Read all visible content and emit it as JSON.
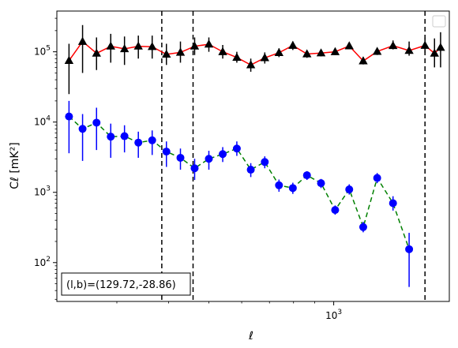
{
  "chart_data": {
    "type": "line",
    "title": "",
    "xlabel": "ℓ",
    "ylabel": "Cℓ  [mK²]",
    "x_scale": "log",
    "y_scale": "log",
    "xlim": [
      215,
      1900
    ],
    "ylim": [
      28,
      380000
    ],
    "x_ticks": [
      {
        "value": 1000,
        "base": "10",
        "exp": "3"
      }
    ],
    "y_ticks": [
      {
        "value": 100,
        "base": "10",
        "exp": "2"
      },
      {
        "value": 1000,
        "base": "10",
        "exp": "3"
      },
      {
        "value": 10000,
        "base": "10",
        "exp": "4"
      },
      {
        "value": 100000,
        "base": "10",
        "exp": "5"
      }
    ],
    "grid": false,
    "annotation": "(l,b)=(129.72,-28.86)",
    "vlines": [
      {
        "x": 385,
        "color": "#000000",
        "dash": "dashed"
      },
      {
        "x": 458,
        "color": "#000000",
        "dash": "dashed"
      },
      {
        "x": 1660,
        "color": "#000000",
        "dash": "dashed"
      }
    ],
    "series": [
      {
        "marker": "triangle",
        "line_color": "#ff0000",
        "marker_color": "#000000",
        "line_style": "solid",
        "points": [
          {
            "x": 230,
            "y": 75000,
            "lo": 25000,
            "hi": 130000
          },
          {
            "x": 248,
            "y": 140000,
            "lo": 50000,
            "hi": 240000
          },
          {
            "x": 268,
            "y": 95000,
            "lo": 55000,
            "hi": 160000
          },
          {
            "x": 290,
            "y": 120000,
            "lo": 70000,
            "hi": 180000
          },
          {
            "x": 313,
            "y": 110000,
            "lo": 65000,
            "hi": 165000
          },
          {
            "x": 338,
            "y": 120000,
            "lo": 80000,
            "hi": 170000
          },
          {
            "x": 365,
            "y": 118000,
            "lo": 80000,
            "hi": 170000
          },
          {
            "x": 395,
            "y": 92000,
            "lo": 65000,
            "hi": 130000
          },
          {
            "x": 427,
            "y": 98000,
            "lo": 70000,
            "hi": 140000
          },
          {
            "x": 462,
            "y": 120000,
            "lo": 90000,
            "hi": 160000
          },
          {
            "x": 500,
            "y": 128000,
            "lo": 100000,
            "hi": 160000
          },
          {
            "x": 540,
            "y": 100000,
            "lo": 80000,
            "hi": 125000
          },
          {
            "x": 584,
            "y": 83000,
            "lo": 70000,
            "hi": 100000
          },
          {
            "x": 631,
            "y": 65000,
            "lo": 52000,
            "hi": 80000
          },
          {
            "x": 682,
            "y": 82000,
            "lo": 68000,
            "hi": 98000
          },
          {
            "x": 738,
            "y": 97000,
            "lo": 84000,
            "hi": 112000
          },
          {
            "x": 797,
            "y": 123000,
            "lo": 106000,
            "hi": 140000
          },
          {
            "x": 862,
            "y": 93000,
            "lo": 82000,
            "hi": 105000
          },
          {
            "x": 932,
            "y": 96000,
            "lo": 86000,
            "hi": 107000
          },
          {
            "x": 1008,
            "y": 100000,
            "lo": 90000,
            "hi": 112000
          },
          {
            "x": 1090,
            "y": 121000,
            "lo": 110000,
            "hi": 134000
          },
          {
            "x": 1178,
            "y": 74000,
            "lo": 66000,
            "hi": 84000
          },
          {
            "x": 1273,
            "y": 101000,
            "lo": 90000,
            "hi": 113000
          },
          {
            "x": 1390,
            "y": 122000,
            "lo": 108000,
            "hi": 145000
          },
          {
            "x": 1520,
            "y": 104000,
            "lo": 88000,
            "hi": 140000
          },
          {
            "x": 1660,
            "y": 123000,
            "lo": 95000,
            "hi": 160000
          },
          {
            "x": 1750,
            "y": 95000,
            "lo": 60000,
            "hi": 155000
          },
          {
            "x": 1810,
            "y": 115000,
            "lo": 60000,
            "hi": 190000
          }
        ]
      },
      {
        "marker": "circle",
        "line_color": "#008000",
        "marker_color": "#0000ff",
        "line_style": "dashed",
        "points": [
          {
            "x": 230,
            "y": 12000,
            "lo": 3600,
            "hi": 20000
          },
          {
            "x": 248,
            "y": 8000,
            "lo": 2800,
            "hi": 13000
          },
          {
            "x": 268,
            "y": 9800,
            "lo": 4000,
            "hi": 16000
          },
          {
            "x": 290,
            "y": 6200,
            "lo": 3100,
            "hi": 9500
          },
          {
            "x": 313,
            "y": 6300,
            "lo": 3700,
            "hi": 9000
          },
          {
            "x": 338,
            "y": 5100,
            "lo": 3100,
            "hi": 7300
          },
          {
            "x": 365,
            "y": 5500,
            "lo": 3400,
            "hi": 7600
          },
          {
            "x": 395,
            "y": 3800,
            "lo": 2300,
            "hi": 5300
          },
          {
            "x": 427,
            "y": 3100,
            "lo": 2100,
            "hi": 4200
          },
          {
            "x": 462,
            "y": 2200,
            "lo": 1500,
            "hi": 3000
          },
          {
            "x": 500,
            "y": 3000,
            "lo": 2100,
            "hi": 3900
          },
          {
            "x": 540,
            "y": 3500,
            "lo": 2700,
            "hi": 4400
          },
          {
            "x": 584,
            "y": 4200,
            "lo": 3300,
            "hi": 5300
          },
          {
            "x": 631,
            "y": 2100,
            "lo": 1650,
            "hi": 2600
          },
          {
            "x": 682,
            "y": 2700,
            "lo": 2200,
            "hi": 3250
          },
          {
            "x": 738,
            "y": 1260,
            "lo": 1020,
            "hi": 1520
          },
          {
            "x": 797,
            "y": 1150,
            "lo": 950,
            "hi": 1370
          },
          {
            "x": 862,
            "y": 1750,
            "lo": 1500,
            "hi": 2000
          },
          {
            "x": 932,
            "y": 1350,
            "lo": 1150,
            "hi": 1550
          },
          {
            "x": 1008,
            "y": 560,
            "lo": 480,
            "hi": 650
          },
          {
            "x": 1090,
            "y": 1100,
            "lo": 930,
            "hi": 1300
          },
          {
            "x": 1178,
            "y": 320,
            "lo": 270,
            "hi": 380
          },
          {
            "x": 1273,
            "y": 1600,
            "lo": 1350,
            "hi": 1880
          },
          {
            "x": 1390,
            "y": 700,
            "lo": 550,
            "hi": 880
          },
          {
            "x": 1520,
            "y": 155,
            "lo": 45,
            "hi": 265
          }
        ]
      }
    ]
  }
}
